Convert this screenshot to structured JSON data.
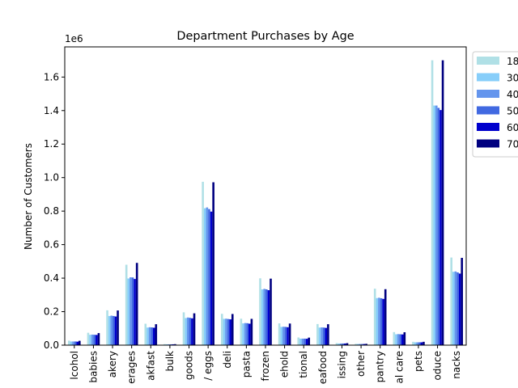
{
  "chart_data": {
    "type": "bar",
    "title": "Department Purchases by Age",
    "xlabel": "",
    "ylabel": "Number of Customers",
    "offset_text": "1e6",
    "ylim": [
      0,
      1.78
    ],
    "yticks": [
      "0.0",
      "0.2",
      "0.4",
      "0.6",
      "0.8",
      "1.0",
      "1.2",
      "1.4",
      "1.6"
    ],
    "grid": false,
    "legend_position": "right, outside plot (clipped)",
    "categories": [
      "alcohol",
      "babies",
      "bakery",
      "beverages",
      "breakfast",
      "bulk",
      "canned goods",
      "dairy eggs",
      "deli",
      "dry goods pasta",
      "frozen",
      "household",
      "international",
      "meat seafood",
      "missing",
      "other",
      "pantry",
      "personal care",
      "pets",
      "produce",
      "snacks"
    ],
    "category_labels_visible": [
      "lcohol",
      "babies",
      "akery",
      "erages",
      "akfast",
      "bulk",
      "goods",
      "/ eggs",
      "deli",
      "pasta",
      "frozen",
      "ehold",
      "tional",
      "eafood",
      "issing",
      "other",
      "pantry",
      "al care",
      "pets",
      "oduce",
      "nacks"
    ],
    "series": [
      {
        "name": "18",
        "color": "#b0e0e6",
        "values": [
          0.027,
          0.074,
          0.208,
          0.48,
          0.128,
          0.006,
          0.196,
          0.975,
          0.187,
          0.158,
          0.399,
          0.13,
          0.046,
          0.126,
          0.012,
          0.008,
          0.337,
          0.078,
          0.02,
          1.7,
          0.523
        ]
      },
      {
        "name": "30",
        "color": "#87cefa",
        "values": [
          0.022,
          0.062,
          0.174,
          0.398,
          0.105,
          0.005,
          0.162,
          0.817,
          0.157,
          0.13,
          0.333,
          0.109,
          0.039,
          0.105,
          0.01,
          0.007,
          0.281,
          0.065,
          0.017,
          1.43,
          0.438
        ]
      },
      {
        "name": "40",
        "color": "#6495ed",
        "values": [
          0.022,
          0.063,
          0.176,
          0.405,
          0.107,
          0.005,
          0.165,
          0.822,
          0.158,
          0.132,
          0.336,
          0.11,
          0.039,
          0.106,
          0.01,
          0.007,
          0.283,
          0.066,
          0.017,
          1.43,
          0.44
        ]
      },
      {
        "name": "50",
        "color": "#4169e1",
        "values": [
          0.022,
          0.062,
          0.174,
          0.404,
          0.106,
          0.005,
          0.163,
          0.812,
          0.156,
          0.131,
          0.333,
          0.109,
          0.039,
          0.105,
          0.01,
          0.007,
          0.28,
          0.065,
          0.017,
          1.416,
          0.434
        ]
      },
      {
        "name": "60",
        "color": "#0000cd",
        "values": [
          0.021,
          0.061,
          0.171,
          0.395,
          0.104,
          0.005,
          0.16,
          0.797,
          0.154,
          0.128,
          0.328,
          0.107,
          0.038,
          0.103,
          0.01,
          0.007,
          0.276,
          0.064,
          0.017,
          1.403,
          0.427
        ]
      },
      {
        "name": "70",
        "color": "#000080",
        "values": [
          0.026,
          0.072,
          0.207,
          0.491,
          0.125,
          0.006,
          0.19,
          0.972,
          0.186,
          0.157,
          0.397,
          0.129,
          0.045,
          0.125,
          0.012,
          0.008,
          0.334,
          0.077,
          0.02,
          1.7,
          0.521
        ]
      }
    ]
  }
}
